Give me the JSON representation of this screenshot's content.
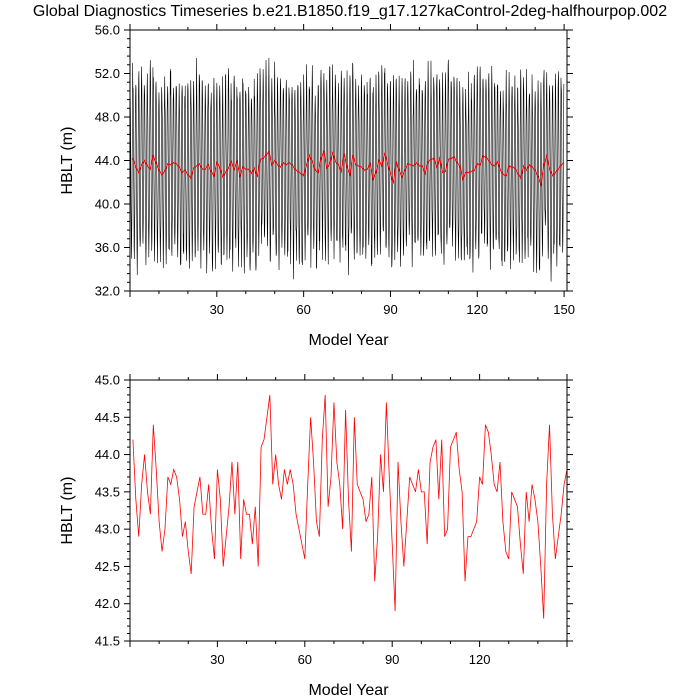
{
  "title": "Global Diagnostics Timeseries b.e21.B1850.f19_g17.127kaControl-2deg-halfhourpop.002",
  "colors": {
    "monthly": "#000000",
    "annual": "#ff0000",
    "frame": "#000000"
  },
  "chart_data": [
    {
      "type": "line",
      "xlabel": "Model Year",
      "ylabel": "HBLT (m)",
      "xlim": [
        0,
        151
      ],
      "ylim": [
        32,
        56
      ],
      "xticks": [
        30,
        60,
        90,
        120,
        150
      ],
      "yticks": [
        32,
        36,
        40,
        44,
        48,
        52,
        56
      ],
      "ytick_labels": [
        "32.0",
        "36.0",
        "40.0",
        "44.0",
        "48.0",
        "52.0",
        "56.0"
      ],
      "series": [
        {
          "key": "monthly",
          "values_note": "monthly seasonal cycle, approx. 37-54 m peak-to-trough",
          "mean": 43.6,
          "amplitude": 8.0
        },
        {
          "key": "annual",
          "values_ref": "annual_mean"
        }
      ]
    },
    {
      "type": "line",
      "xlabel": "Model Year",
      "ylabel": "HBLT (m)",
      "xlim": [
        0,
        150
      ],
      "ylim": [
        41.5,
        45.0
      ],
      "xticks": [
        30,
        60,
        90,
        120
      ],
      "yticks": [
        41.5,
        42.0,
        42.5,
        43.0,
        43.5,
        44.0,
        44.5,
        45.0
      ],
      "ytick_labels": [
        "41.5",
        "42.0",
        "42.5",
        "43.0",
        "43.5",
        "44.0",
        "44.5",
        "45.0"
      ],
      "series": [
        {
          "key": "annual",
          "values_ref": "annual_mean"
        }
      ]
    }
  ],
  "annual_mean": {
    "x": [
      1,
      2,
      3,
      4,
      5,
      6,
      7,
      8,
      9,
      10,
      11,
      12,
      13,
      14,
      15,
      16,
      17,
      18,
      19,
      20,
      21,
      22,
      23,
      24,
      25,
      26,
      27,
      28,
      29,
      30,
      31,
      32,
      33,
      34,
      35,
      36,
      37,
      38,
      39,
      40,
      41,
      42,
      43,
      44,
      45,
      46,
      47,
      48,
      49,
      50,
      51,
      52,
      53,
      54,
      55,
      56,
      57,
      58,
      59,
      60,
      61,
      62,
      63,
      64,
      65,
      66,
      67,
      68,
      69,
      70,
      71,
      72,
      73,
      74,
      75,
      76,
      77,
      78,
      79,
      80,
      81,
      82,
      83,
      84,
      85,
      86,
      87,
      88,
      89,
      90,
      91,
      92,
      93,
      94,
      95,
      96,
      97,
      98,
      99,
      100,
      101,
      102,
      103,
      104,
      105,
      106,
      107,
      108,
      109,
      110,
      111,
      112,
      113,
      114,
      115,
      116,
      117,
      118,
      119,
      120,
      121,
      122,
      123,
      124,
      125,
      126,
      127,
      128,
      129,
      130,
      131,
      132,
      133,
      134,
      135,
      136,
      137,
      138,
      139,
      140,
      141,
      142,
      143,
      144,
      145,
      146,
      147,
      148,
      149,
      150
    ],
    "y": [
      44.2,
      43.4,
      42.9,
      43.6,
      44.0,
      43.5,
      43.2,
      44.4,
      43.8,
      43.1,
      42.7,
      43.0,
      43.7,
      43.6,
      43.8,
      43.7,
      43.4,
      42.9,
      43.1,
      42.7,
      42.4,
      43.3,
      43.5,
      43.7,
      43.2,
      43.2,
      43.6,
      43.0,
      42.6,
      43.8,
      43.4,
      42.5,
      42.9,
      43.3,
      43.9,
      43.2,
      43.9,
      42.6,
      43.4,
      43.2,
      43.2,
      42.8,
      43.3,
      42.5,
      44.1,
      44.2,
      44.5,
      44.8,
      43.6,
      44.0,
      43.6,
      43.4,
      43.8,
      43.6,
      43.8,
      43.6,
      43.2,
      43.0,
      42.8,
      42.6,
      43.6,
      44.5,
      43.9,
      43.1,
      42.9,
      44.2,
      44.8,
      43.3,
      43.7,
      44.7,
      43.9,
      43.6,
      43.0,
      44.6,
      43.4,
      42.7,
      44.5,
      43.6,
      43.5,
      43.4,
      43.1,
      43.2,
      43.7,
      42.3,
      42.9,
      44.0,
      43.5,
      44.7,
      43.7,
      42.8,
      41.9,
      43.9,
      43.1,
      42.5,
      43.1,
      43.7,
      43.6,
      43.5,
      43.8,
      43.5,
      43.5,
      42.8,
      43.9,
      44.1,
      44.2,
      43.4,
      44.2,
      42.9,
      43.0,
      44.1,
      44.2,
      44.3,
      43.8,
      43.5,
      42.3,
      42.9,
      42.9,
      43.0,
      43.1,
      43.7,
      43.6,
      44.4,
      44.3,
      44.0,
      43.6,
      43.5,
      43.9,
      43.1,
      42.7,
      42.6,
      43.5,
      43.4,
      43.3,
      42.8,
      42.4,
      43.5,
      43.1,
      43.6,
      43.4,
      43.1,
      42.5,
      41.8,
      43.6,
      44.4,
      43.2,
      42.6,
      42.9,
      43.2,
      43.6,
      43.8
    ]
  }
}
